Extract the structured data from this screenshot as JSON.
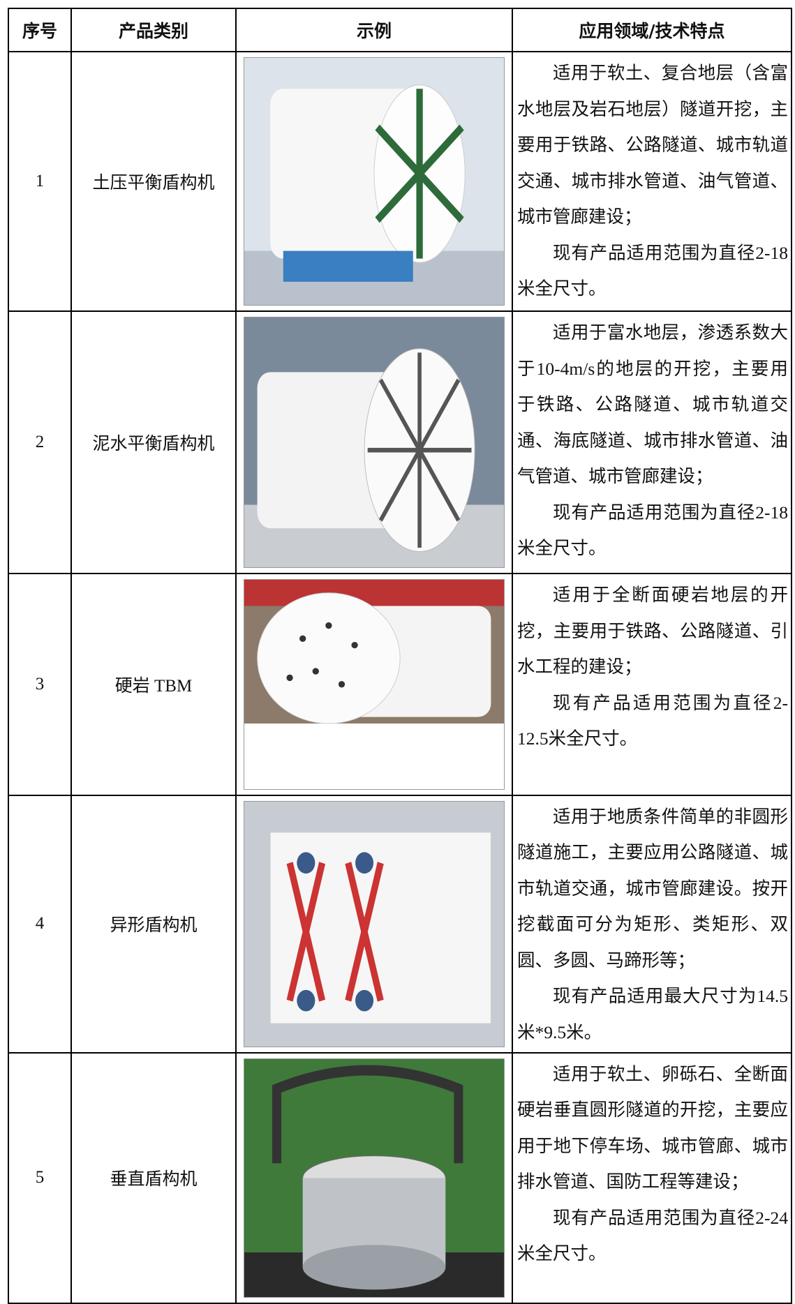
{
  "table": {
    "header": [
      "序号",
      "产品类别",
      "示例",
      "应用领域/技术特点"
    ],
    "rows": [
      {
        "no": "1",
        "category": "土压平衡盾构机",
        "description": [
          "适用于软土、复合地层（含富水地层及岩石地层）隧道开挖，主要用于铁路、公路隧道、城市轨道交通、城市排水管道、油气管道、城市管廊建设；",
          "现有产品适用范围为直径2-18米全尺寸。"
        ]
      },
      {
        "no": "2",
        "category": "泥水平衡盾构机",
        "description": [
          "适用于富水地层，渗透系数大于10-4m/s的地层的开挖，主要用于铁路、公路隧道、城市轨道交通、海底隧道、城市排水管道、油气管道、城市管廊建设；",
          "现有产品适用范围为直径2-18米全尺寸。"
        ]
      },
      {
        "no": "3",
        "category": "硬岩 TBM",
        "description": [
          "适用于全断面硬岩地层的开挖，主要用于铁路、公路隧道、引水工程的建设；",
          "现有产品适用范围为直径2-12.5米全尺寸。"
        ]
      },
      {
        "no": "4",
        "category": "异形盾构机",
        "description": [
          "适用于地质条件简单的非圆形隧道施工，主要应用公路隧道、城市轨道交通，城市管廊建设。按开挖截面可分为矩形、类矩形、双圆、多圆、马蹄形等；",
          "现有产品适用最大尺寸为14.5米*9.5米。"
        ]
      },
      {
        "no": "5",
        "category": "垂直盾构机",
        "description": [
          "适用于软土、卵砾石、全断面硬岩垂直圆形隧道的开挖，主要应用于地下停车场、城市管廊、城市排水管道、国防工程等建设；",
          "现有产品适用范围为直径2-24米全尺寸。"
        ]
      }
    ]
  }
}
